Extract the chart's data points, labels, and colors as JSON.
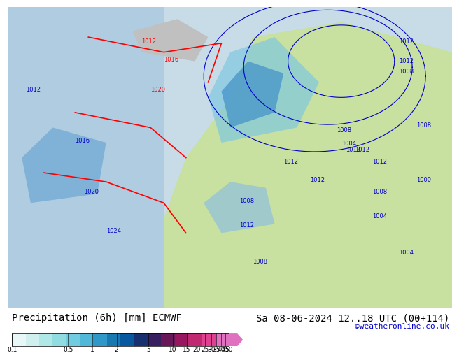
{
  "title_left": "Precipitation (6h) [mm] ECMWF",
  "title_right": "Sa 08-06-2024 12..18 UTC (00+114)",
  "credit": "©weatheronline.co.uk",
  "colorbar_values": [
    0.1,
    0.5,
    1,
    2,
    5,
    10,
    15,
    20,
    25,
    30,
    35,
    40,
    45,
    50
  ],
  "colorbar_colors": [
    "#e0f8f8",
    "#c0f0f0",
    "#a0e8e8",
    "#80d8e8",
    "#60c8e0",
    "#40a8d0",
    "#2080c0",
    "#1060a8",
    "#083888",
    "#301878",
    "#581868",
    "#902060",
    "#c02868",
    "#e03080",
    "#e060b0",
    "#e090d0"
  ],
  "bg_color": "#ffffff",
  "map_bg": "#e8f4e0",
  "text_color": "#000000",
  "title_fontsize": 10,
  "credit_color": "#0000cc",
  "credit_fontsize": 8
}
